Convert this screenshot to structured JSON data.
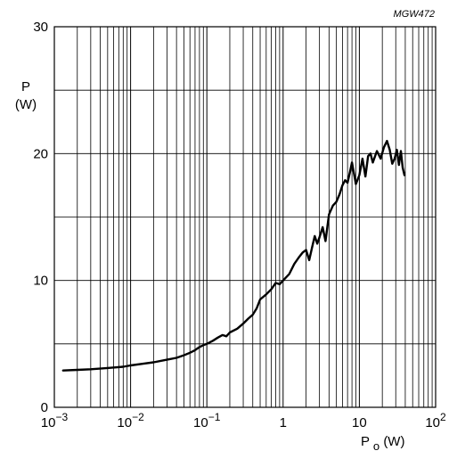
{
  "chart_data": {
    "type": "line",
    "figure_code": "MGW472",
    "y_label_top": "P",
    "y_label_unit": "(W)",
    "x_label_main": "P",
    "x_label_sub": "o",
    "x_label_unit": " (W)",
    "x_scale": "log",
    "x_range": [
      0.001,
      100
    ],
    "y_range": [
      0,
      30
    ],
    "y_ticks": [
      {
        "value": 0,
        "label": "0"
      },
      {
        "value": 10,
        "label": "10"
      },
      {
        "value": 20,
        "label": "20"
      },
      {
        "value": 30,
        "label": "30"
      }
    ],
    "x_ticks": [
      {
        "value": 0.001,
        "base": "10",
        "exp": "−3"
      },
      {
        "value": 0.01,
        "base": "10",
        "exp": "−2"
      },
      {
        "value": 0.1,
        "base": "10",
        "exp": "−1"
      },
      {
        "value": 1,
        "base": "1",
        "exp": ""
      },
      {
        "value": 10,
        "base": "10",
        "exp": ""
      },
      {
        "value": 100,
        "base": "10",
        "exp": "2"
      }
    ],
    "grid": true,
    "series": [
      {
        "x": [
          0.0013,
          0.002,
          0.003,
          0.005,
          0.008,
          0.01,
          0.015,
          0.02,
          0.03,
          0.04,
          0.05,
          0.06,
          0.07,
          0.08,
          0.09,
          0.1,
          0.12,
          0.14,
          0.16,
          0.18,
          0.2,
          0.25,
          0.3,
          0.35,
          0.4,
          0.45,
          0.5,
          0.6,
          0.7,
          0.8,
          0.9,
          1.0,
          1.2,
          1.4,
          1.6,
          1.8,
          2.0,
          2.2,
          2.4,
          2.6,
          2.8,
          3.0,
          3.3,
          3.6,
          4.0,
          4.5,
          5.0,
          5.5,
          6.0,
          6.5,
          7.0,
          7.5,
          8.0,
          9.0,
          10.0,
          11.0,
          12.0,
          13.0,
          14.0,
          15.0,
          17.0,
          19.0,
          21.0,
          23.0,
          25.0,
          27.0,
          29.0,
          31.0,
          33.0,
          35.0,
          37.0,
          39.0
        ],
        "y": [
          2.9,
          2.95,
          3.0,
          3.1,
          3.2,
          3.3,
          3.45,
          3.55,
          3.75,
          3.9,
          4.1,
          4.3,
          4.5,
          4.75,
          4.9,
          5.0,
          5.25,
          5.5,
          5.7,
          5.6,
          5.9,
          6.2,
          6.6,
          7.0,
          7.3,
          7.8,
          8.5,
          8.9,
          9.3,
          9.8,
          9.7,
          10.0,
          10.5,
          11.3,
          11.8,
          12.2,
          12.4,
          11.6,
          12.6,
          13.5,
          12.9,
          13.4,
          14.2,
          13.1,
          15.2,
          15.9,
          16.2,
          16.8,
          17.5,
          17.9,
          17.7,
          18.5,
          19.3,
          17.6,
          18.3,
          19.6,
          18.2,
          19.8,
          20.0,
          19.3,
          20.2,
          19.6,
          20.5,
          21.0,
          20.3,
          19.2,
          19.6,
          20.3,
          19.1,
          20.2,
          18.9,
          18.3
        ]
      }
    ]
  }
}
